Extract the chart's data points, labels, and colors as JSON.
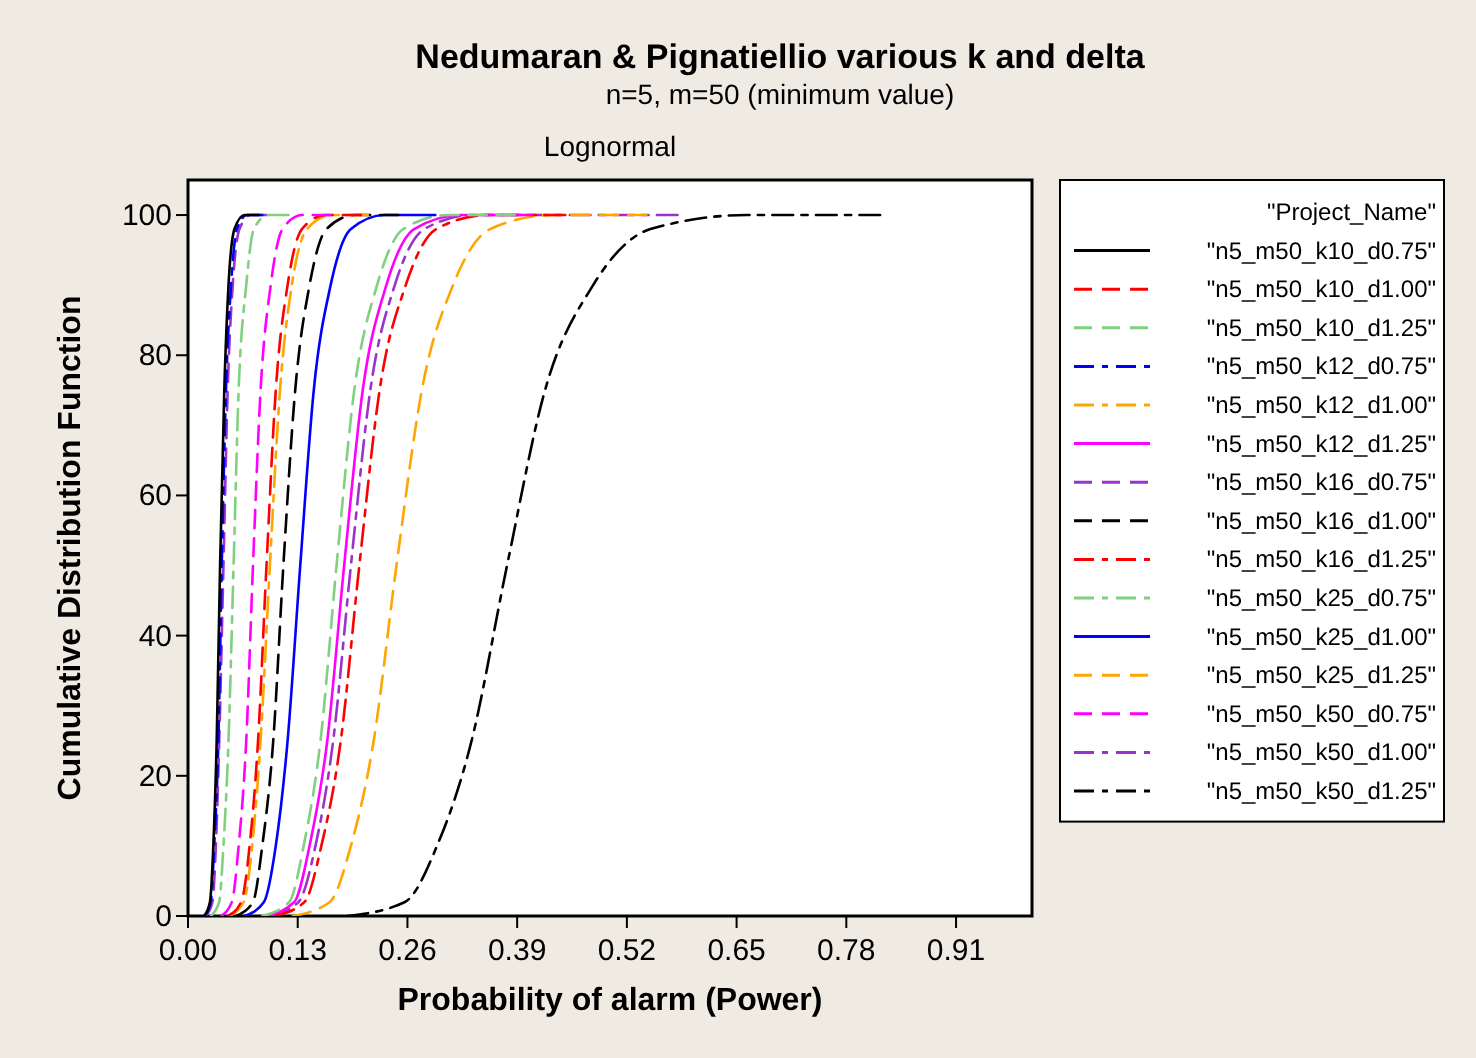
{
  "chart_data": {
    "type": "line",
    "title": "Nedumaran & Pignatiellio various k and delta",
    "subtitle": "n=5, m=50 (minimum value)",
    "annotations": [
      "Lognormal"
    ],
    "xlabel": "Probability of alarm (Power)",
    "ylabel": "Cumulative Distribution Function",
    "legend_title": "\"Project_Name\"",
    "legend": "right",
    "grid": false,
    "xlim": [
      0,
      1
    ],
    "xticks": [
      {
        "value": 0,
        "label": "0.00"
      },
      0.13,
      0.26,
      0.39,
      0.52,
      0.65,
      0.78,
      0.91
    ],
    "ylim": [
      0,
      105
    ],
    "yticks": [
      0,
      20,
      40,
      60,
      80,
      100
    ],
    "series": [
      {
        "name": "\"n5_m50_k10_d0.75\"",
        "color": "#000000",
        "line_style": "solid",
        "x": [
          0.019,
          0.026,
          0.03,
          0.034,
          0.038,
          0.043,
          0.048,
          0.055,
          0.067,
          0.084
        ],
        "values": [
          0,
          2,
          10,
          25,
          50,
          75,
          90,
          98,
          100,
          100
        ]
      },
      {
        "name": "\"n5_m50_k10_d1.00\"",
        "color": "#ff0000",
        "line_style": "dashed",
        "x": [
          0.047,
          0.063,
          0.073,
          0.083,
          0.093,
          0.104,
          0.118,
          0.135,
          0.163,
          0.205
        ],
        "values": [
          0,
          2,
          10,
          25,
          50,
          75,
          90,
          98,
          100,
          100
        ]
      },
      {
        "name": "\"n5_m50_k10_d1.25\"",
        "color": "#80d080",
        "line_style": "dashed",
        "x": [
          0.088,
          0.12,
          0.137,
          0.157,
          0.176,
          0.197,
          0.224,
          0.255,
          0.308,
          0.387
        ],
        "values": [
          0,
          2,
          10,
          25,
          50,
          75,
          90,
          98,
          100,
          100
        ]
      },
      {
        "name": "\"n5_m50_k12_d0.75\"",
        "color": "#0000ff",
        "line_style": "dashdot",
        "x": [
          0.02,
          0.027,
          0.031,
          0.036,
          0.04,
          0.045,
          0.051,
          0.058,
          0.07,
          0.088
        ],
        "values": [
          0,
          2,
          10,
          25,
          50,
          75,
          90,
          98,
          100,
          100
        ]
      },
      {
        "name": "\"n5_m50_k12_d1.00\"",
        "color": "#ffa500",
        "line_style": "dashdot",
        "x": [
          0.049,
          0.066,
          0.076,
          0.086,
          0.097,
          0.109,
          0.123,
          0.141,
          0.17,
          0.213
        ],
        "values": [
          0,
          2,
          10,
          25,
          50,
          75,
          90,
          98,
          100,
          100
        ]
      },
      {
        "name": "\"n5_m50_k12_d1.25\"",
        "color": "#ff00ff",
        "line_style": "solid",
        "x": [
          0.093,
          0.126,
          0.144,
          0.165,
          0.185,
          0.207,
          0.235,
          0.268,
          0.324,
          0.407
        ],
        "values": [
          0,
          2,
          10,
          25,
          50,
          75,
          90,
          98,
          100,
          100
        ]
      },
      {
        "name": "\"n5_m50_k16_d0.75\"",
        "color": "#9933cc",
        "line_style": "dashed",
        "x": [
          0.021,
          0.029,
          0.033,
          0.037,
          0.042,
          0.047,
          0.053,
          0.061,
          0.074,
          0.092
        ],
        "values": [
          0,
          2,
          10,
          25,
          50,
          75,
          90,
          98,
          100,
          100
        ]
      },
      {
        "name": "\"n5_m50_k16_d1.00\"",
        "color": "#000000",
        "line_style": "dashed",
        "x": [
          0.057,
          0.077,
          0.088,
          0.101,
          0.113,
          0.127,
          0.144,
          0.164,
          0.198,
          0.249
        ],
        "values": [
          0,
          2,
          10,
          25,
          50,
          75,
          90,
          98,
          100,
          100
        ]
      },
      {
        "name": "\"n5_m50_k16_d1.25\"",
        "color": "#ff0000",
        "line_style": "dashdot",
        "x": [
          0.102,
          0.138,
          0.158,
          0.181,
          0.203,
          0.227,
          0.258,
          0.294,
          0.355,
          0.447
        ],
        "values": [
          0,
          2,
          10,
          25,
          50,
          75,
          90,
          98,
          100,
          100
        ]
      },
      {
        "name": "\"n5_m50_k25_d0.75\"",
        "color": "#80d080",
        "line_style": "dashdot",
        "x": [
          0.027,
          0.037,
          0.042,
          0.048,
          0.054,
          0.06,
          0.069,
          0.078,
          0.095,
          0.119
        ],
        "values": [
          0,
          2,
          10,
          25,
          50,
          75,
          90,
          98,
          100,
          100
        ]
      },
      {
        "name": "\"n5_m50_k25_d1.00\"",
        "color": "#0000ff",
        "line_style": "solid",
        "x": [
          0.067,
          0.09,
          0.104,
          0.118,
          0.133,
          0.149,
          0.169,
          0.193,
          0.233,
          0.293
        ],
        "values": [
          0,
          2,
          10,
          25,
          50,
          75,
          90,
          98,
          100,
          100
        ]
      },
      {
        "name": "\"n5_m50_k25_d1.25\"",
        "color": "#ffa500",
        "line_style": "dashed",
        "x": [
          0.124,
          0.168,
          0.193,
          0.22,
          0.247,
          0.277,
          0.314,
          0.358,
          0.432,
          0.543
        ],
        "values": [
          0,
          2,
          10,
          25,
          50,
          75,
          90,
          98,
          100,
          100
        ]
      },
      {
        "name": "\"n5_m50_k50_d0.75\"",
        "color": "#ff00ff",
        "line_style": "dashed",
        "x": [
          0.039,
          0.052,
          0.06,
          0.069,
          0.077,
          0.086,
          0.098,
          0.112,
          0.135,
          0.169
        ],
        "values": [
          0,
          2,
          10,
          25,
          50,
          75,
          90,
          98,
          100,
          100
        ]
      },
      {
        "name": "\"n5_m50_k50_d1.00\"",
        "color": "#9933cc",
        "line_style": "dashdot",
        "x": [
          0.097,
          0.131,
          0.151,
          0.172,
          0.193,
          0.216,
          0.245,
          0.28,
          0.338,
          0.58
        ],
        "values": [
          0,
          2,
          10,
          25,
          50,
          75,
          90,
          98,
          100,
          100
        ]
      },
      {
        "name": "\"n5_m50_k50_d1.25\"",
        "color": "#000000",
        "line_style": "dashdot",
        "x": [
          0.189,
          0.257,
          0.295,
          0.336,
          0.378,
          0.423,
          0.48,
          0.548,
          0.662,
          0.82
        ],
        "values": [
          0,
          2,
          10,
          25,
          50,
          75,
          90,
          98,
          100,
          100
        ]
      }
    ]
  }
}
